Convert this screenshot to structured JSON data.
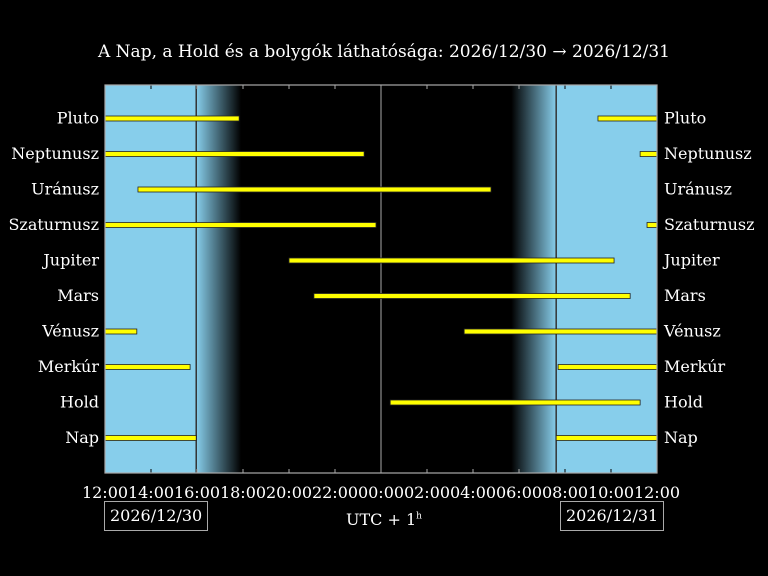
{
  "chart_data": {
    "type": "gantt",
    "title": "A Nap, a Hold és a bolygók láthatósága: 2026/12/30 → 2026/12/31",
    "x_range": [
      "2026/12/30 12:00",
      "2026/12/31 12:00"
    ],
    "x_ticks": [
      "12:00",
      "14:00",
      "16:00",
      "18:00",
      "20:00",
      "22:00",
      "00:00",
      "02:00",
      "04:00",
      "06:00",
      "08:00",
      "10:00",
      "12:00"
    ],
    "start_date": "2026/12/30",
    "end_date": "2026/12/31",
    "timezone": "UTC + 1",
    "timezone_sup": "h",
    "sunset": "2026/12/30 15:58",
    "dusk_end": "2026/12/30 17:55",
    "dawn_start": "2026/12/31 05:40",
    "sunrise": "2026/12/31 07:37",
    "colors": {
      "day": "#87ceeb",
      "night": "#000000",
      "bar": "#ffff00"
    },
    "rows": [
      {
        "name": "Pluto",
        "intervals": [
          [
            "2026/12/30 12:00",
            "2026/12/30 17:50"
          ],
          [
            "2026/12/31 09:26",
            "2026/12/31 12:00"
          ]
        ]
      },
      {
        "name": "Neptunusz",
        "intervals": [
          [
            "2026/12/30 12:00",
            "2026/12/30 23:16"
          ],
          [
            "2026/12/31 11:16",
            "2026/12/31 12:00"
          ]
        ]
      },
      {
        "name": "Uránusz",
        "intervals": [
          [
            "2026/12/30 13:26",
            "2026/12/31 04:47"
          ]
        ]
      },
      {
        "name": "Szaturnusz",
        "intervals": [
          [
            "2026/12/30 12:00",
            "2026/12/30 23:47"
          ],
          [
            "2026/12/31 11:34",
            "2026/12/31 12:00"
          ]
        ]
      },
      {
        "name": "Jupiter",
        "intervals": [
          [
            "2026/12/30 20:00",
            "2026/12/31 10:08"
          ]
        ]
      },
      {
        "name": "Mars",
        "intervals": [
          [
            "2026/12/30 21:05",
            "2026/12/31 10:50"
          ]
        ]
      },
      {
        "name": "Vénusz",
        "intervals": [
          [
            "2026/12/30 12:00",
            "2026/12/30 13:23"
          ],
          [
            "2026/12/31 03:37",
            "2026/12/31 12:00"
          ]
        ]
      },
      {
        "name": "Merkúr",
        "intervals": [
          [
            "2026/12/30 12:00",
            "2026/12/30 15:42"
          ],
          [
            "2026/12/31 07:42",
            "2026/12/31 12:00"
          ]
        ]
      },
      {
        "name": "Hold",
        "intervals": [
          [
            "2026/12/31 00:24",
            "2026/12/31 11:16"
          ]
        ]
      },
      {
        "name": "Nap",
        "intervals": [
          [
            "2026/12/30 12:00",
            "2026/12/30 15:58"
          ],
          [
            "2026/12/31 07:37",
            "2026/12/31 12:00"
          ]
        ]
      }
    ]
  }
}
